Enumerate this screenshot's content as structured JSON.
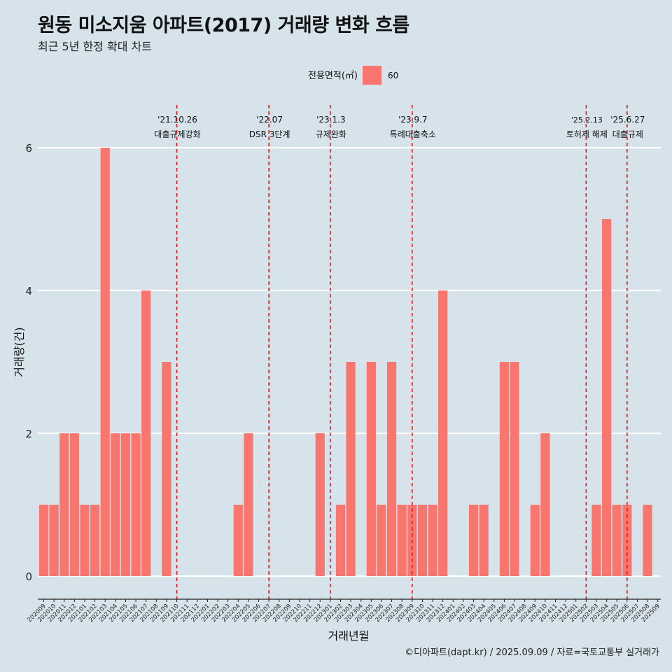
{
  "title": "원동 미소지움 아파트(2017) 거래량 변화 흐름",
  "subtitle": "최근 5년 한정 확대 차트",
  "caption": "©디아파트(dapt.kr) / 2025.09.09 / 자료=국토교통부 실거래가",
  "colors": {
    "background": "#d6e3ea",
    "bar": "#f8766d",
    "event_line": "#e8161c",
    "grid": "#ffffff"
  },
  "chart_data": {
    "type": "bar",
    "xlabel": "거래년월",
    "ylabel": "거래량(건)",
    "ylim": [
      0,
      6.3
    ],
    "yticks": [
      0,
      2,
      4,
      6
    ],
    "legend": {
      "title": "전용면적(㎡)",
      "entries": [
        "60"
      ],
      "placement": "top"
    },
    "categories": [
      "202009",
      "202010",
      "202011",
      "202012",
      "202101",
      "202102",
      "202103",
      "202104",
      "202105",
      "202106",
      "202107",
      "202108",
      "202109",
      "202110",
      "202111",
      "202112",
      "202201",
      "202202",
      "202203",
      "202204",
      "202205",
      "202206",
      "202207",
      "202208",
      "202209",
      "202210",
      "202211",
      "202212",
      "202301",
      "202302",
      "202303",
      "202304",
      "202305",
      "202306",
      "202307",
      "202308",
      "202309",
      "202310",
      "202311",
      "202312",
      "202401",
      "202402",
      "202403",
      "202404",
      "202405",
      "202406",
      "202407",
      "202408",
      "202409",
      "202410",
      "202411",
      "202412",
      "202501",
      "202502",
      "202503",
      "202504",
      "202505",
      "202506",
      "202507",
      "202508",
      "202509"
    ],
    "series": [
      {
        "name": "60",
        "values": [
          1,
          1,
          2,
          2,
          1,
          1,
          6,
          2,
          2,
          2,
          4,
          0,
          3,
          0,
          0,
          0,
          0,
          0,
          0,
          1,
          2,
          0,
          0,
          0,
          0,
          0,
          0,
          2,
          0,
          1,
          3,
          0,
          3,
          1,
          3,
          1,
          1,
          1,
          1,
          4,
          0,
          0,
          1,
          1,
          0,
          3,
          3,
          0,
          1,
          2,
          0,
          0,
          0,
          0,
          1,
          5,
          1,
          1,
          0,
          1,
          0
        ]
      }
    ],
    "events": [
      {
        "at": "202110",
        "date": "'21.10.26",
        "label": "대출규제강화"
      },
      {
        "at": "202207",
        "date": "'22.07",
        "label": "DSR 3단계"
      },
      {
        "at": "202301",
        "date": "'23.1.3",
        "label": "규제완화"
      },
      {
        "at": "202309",
        "date": "'23.9.7",
        "label": "특례대출축소"
      },
      {
        "at": "202502",
        "date": "'25.2.13",
        "label": "토허제 해제"
      },
      {
        "at": "202506",
        "date": "'25.6.27",
        "label": "대출규제"
      }
    ]
  }
}
